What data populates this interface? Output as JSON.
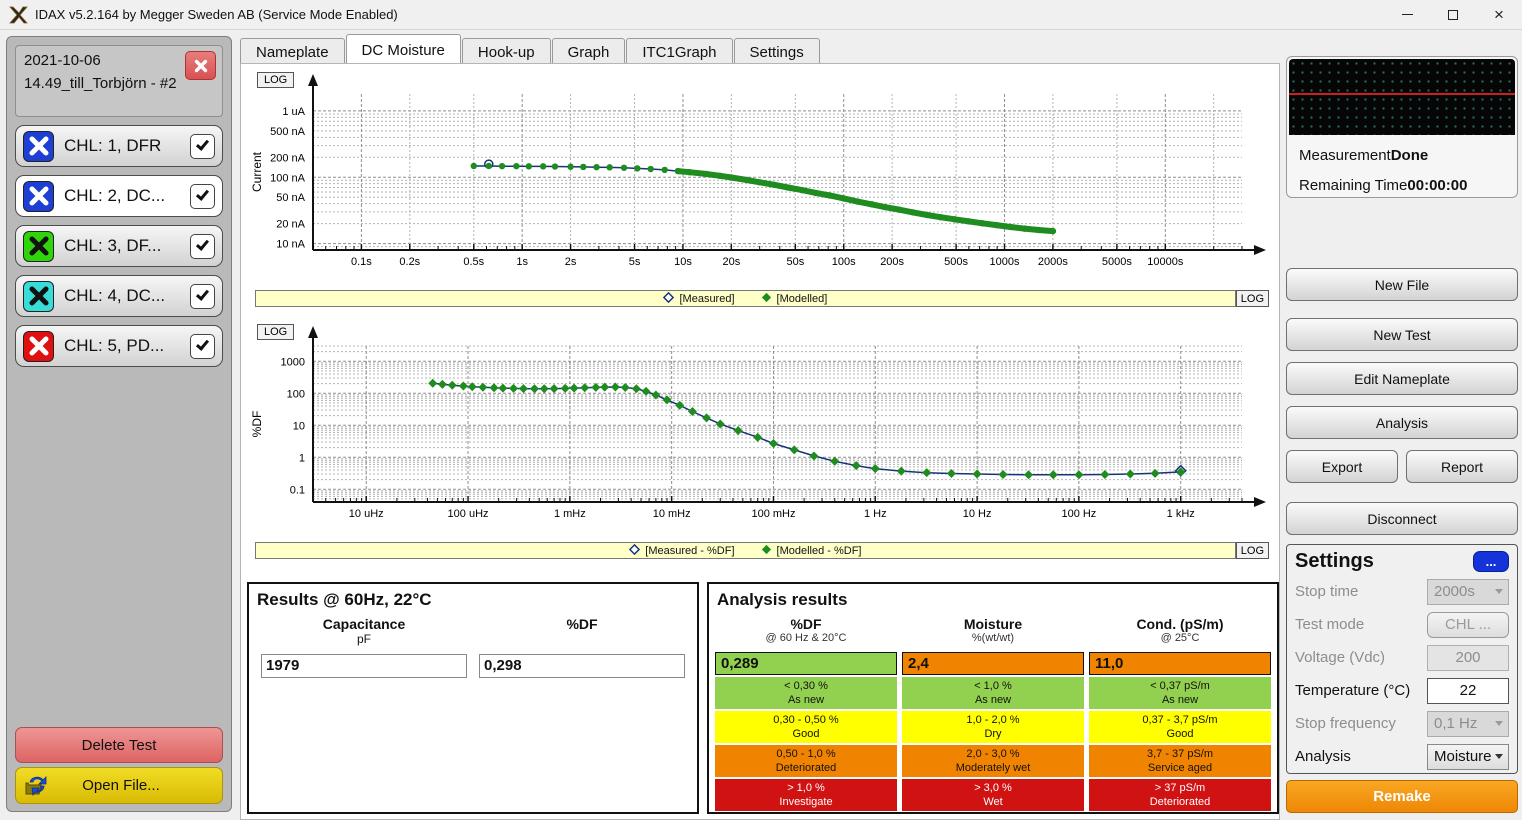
{
  "window": {
    "title": "IDAX v5.2.164 by Megger Sweden AB (Service Mode Enabled)"
  },
  "sidebar": {
    "test_date": "2021-10-06",
    "test_name": "14.49_till_Torbjörn - #2",
    "channels": [
      {
        "id": 1,
        "label": "CHL: 1, DFR",
        "icon_color": "#1e3fd4",
        "x_color": "#ffffff",
        "selected": false,
        "checked": true
      },
      {
        "id": 2,
        "label": "CHL: 2, DC...",
        "icon_color": "#1e3fd4",
        "x_color": "#ffffff",
        "selected": true,
        "checked": true
      },
      {
        "id": 3,
        "label": "CHL: 3, DF...",
        "icon_color": "#2fd40a",
        "x_color": "#111111",
        "selected": false,
        "checked": true
      },
      {
        "id": 4,
        "label": "CHL: 4, DC...",
        "icon_color": "#38dcd9",
        "x_color": "#111111",
        "selected": false,
        "checked": true
      },
      {
        "id": 5,
        "label": "CHL: 5, PD...",
        "icon_color": "#e01010",
        "x_color": "#ffffff",
        "selected": false,
        "checked": true
      }
    ],
    "delete_button": "Delete Test",
    "open_button": "Open File..."
  },
  "tabs": {
    "items": [
      "Nameplate",
      "DC Moisture",
      "Hook-up",
      "Graph",
      "ITC1Graph",
      "Settings"
    ],
    "active": "DC Moisture"
  },
  "results": {
    "title": "Results @ 60Hz, 22°C",
    "fields": [
      {
        "label": "Capacitance",
        "unit": "pF",
        "value": "1979"
      },
      {
        "label": "%DF",
        "unit": "",
        "value": "0,298"
      }
    ]
  },
  "analysis": {
    "title": "Analysis results",
    "palette": {
      "green": "#92d050",
      "yellow": "#ffff00",
      "orange": "#f08400",
      "red": "#d01212"
    },
    "columns": [
      {
        "header": "%DF",
        "subheader": "@ 60 Hz & 20°C",
        "value": "0,289",
        "value_color": "#92d050",
        "rows": [
          {
            "range": "< 0,30 %",
            "label": "As new",
            "color": "#92d050",
            "text": "#111111"
          },
          {
            "range": "0,30 - 0,50 %",
            "label": "Good",
            "color": "#ffff00",
            "text": "#111111"
          },
          {
            "range": "0,50 - 1,0 %",
            "label": "Deteriorated",
            "color": "#f08400",
            "text": "#111111"
          },
          {
            "range": "> 1,0 %",
            "label": "Investigate",
            "color": "#d01212",
            "text": "#ffffff"
          }
        ]
      },
      {
        "header": "Moisture",
        "subheader": "%(wt/wt)",
        "value": "2,4",
        "value_color": "#f08400",
        "rows": [
          {
            "range": "< 1,0 %",
            "label": "As new",
            "color": "#92d050",
            "text": "#111111"
          },
          {
            "range": "1,0 - 2,0 %",
            "label": "Dry",
            "color": "#ffff00",
            "text": "#111111"
          },
          {
            "range": "2,0 - 3,0 %",
            "label": "Moderately wet",
            "color": "#f08400",
            "text": "#111111"
          },
          {
            "range": "> 3,0 %",
            "label": "Wet",
            "color": "#d01212",
            "text": "#ffffff"
          }
        ]
      },
      {
        "header": "Cond. (pS/m)",
        "subheader": "@ 25°C",
        "value": "11,0",
        "value_color": "#f08400",
        "rows": [
          {
            "range": "< 0,37 pS/m",
            "label": "As new",
            "color": "#92d050",
            "text": "#111111"
          },
          {
            "range": "0,37 - 3,7 pS/m",
            "label": "Good",
            "color": "#ffff00",
            "text": "#111111"
          },
          {
            "range": "3,7 - 37 pS/m",
            "label": "Service aged",
            "color": "#f08400",
            "text": "#111111"
          },
          {
            "range": "> 37 pS/m",
            "label": "Deteriorated",
            "color": "#d01212",
            "text": "#ffffff"
          }
        ]
      }
    ]
  },
  "right_panel": {
    "measurement_label": "Measurement",
    "measurement_value": "Done",
    "remaining_label": "Remaining Time",
    "remaining_value": "00:00:00",
    "new_file": "New File",
    "new_test": "New Test",
    "edit_nameplate": "Edit Nameplate",
    "analysis_btn": "Analysis",
    "export": "Export",
    "report": "Report",
    "disconnect": "Disconnect",
    "remake": "Remake",
    "settings": {
      "title": "Settings",
      "more": "...",
      "rows": [
        {
          "label": "Stop time",
          "value": "2000s",
          "type": "select",
          "enabled": false
        },
        {
          "label": "Test mode",
          "value": "CHL ...",
          "type": "button",
          "enabled": false
        },
        {
          "label": "Voltage (Vdc)",
          "value": "200",
          "type": "input",
          "enabled": false
        },
        {
          "label": "Temperature (°C)",
          "value": "22",
          "type": "input",
          "enabled": true
        },
        {
          "label": "Stop frequency",
          "value": "0,1 Hz",
          "type": "select",
          "enabled": false
        },
        {
          "label": "Analysis",
          "value": "Moisture",
          "type": "select",
          "enabled": true
        }
      ]
    }
  },
  "chart_data": [
    {
      "type": "scatter",
      "name": "current-vs-time",
      "log_label": "LOG",
      "ylabel": "Current",
      "x_scale": "log",
      "y_scale": "log",
      "xlim": [
        0.05,
        30000
      ],
      "ylim": [
        8,
        1800
      ],
      "xticks": [
        [
          0.1,
          "0.1s"
        ],
        [
          0.2,
          "0.2s"
        ],
        [
          0.5,
          "0.5s"
        ],
        [
          1,
          "1s"
        ],
        [
          2,
          "2s"
        ],
        [
          5,
          "5s"
        ],
        [
          10,
          "10s"
        ],
        [
          20,
          "20s"
        ],
        [
          50,
          "50s"
        ],
        [
          100,
          "100s"
        ],
        [
          200,
          "200s"
        ],
        [
          500,
          "500s"
        ],
        [
          1000,
          "1000s"
        ],
        [
          2000,
          "2000s"
        ],
        [
          5000,
          "5000s"
        ],
        [
          10000,
          "10000s"
        ]
      ],
      "yticks": [
        [
          1000,
          "1 uA"
        ],
        [
          500,
          "500 nA"
        ],
        [
          200,
          "200 nA"
        ],
        [
          100,
          "100 nA"
        ],
        [
          50,
          "50 nA"
        ],
        [
          20,
          "20 nA"
        ],
        [
          10,
          "10 nA"
        ]
      ],
      "v_grid_multipliers": [
        1,
        2,
        5
      ],
      "points_unit": [
        "time s",
        "current nA"
      ],
      "points": [
        [
          0.5,
          148
        ],
        [
          0.62,
          148
        ],
        [
          0.75,
          147
        ],
        [
          0.92,
          147
        ],
        [
          1.1,
          146
        ],
        [
          1.35,
          146
        ],
        [
          1.6,
          145
        ],
        [
          2.0,
          144
        ],
        [
          2.4,
          143
        ],
        [
          2.9,
          142
        ],
        [
          3.5,
          141
        ],
        [
          4.3,
          139
        ],
        [
          5.2,
          136
        ],
        [
          6.3,
          133
        ],
        [
          7.7,
          129
        ],
        [
          9.3,
          124
        ],
        [
          11,
          119
        ],
        [
          14,
          112
        ],
        [
          17,
          105
        ],
        [
          20,
          99
        ],
        [
          25,
          91
        ],
        [
          30,
          84
        ],
        [
          37,
          77
        ],
        [
          45,
          70
        ],
        [
          55,
          64
        ],
        [
          67,
          58
        ],
        [
          82,
          53
        ],
        [
          100,
          48
        ],
        [
          122,
          43
        ],
        [
          150,
          39
        ],
        [
          180,
          35.5
        ],
        [
          220,
          32.5
        ],
        [
          270,
          29.5
        ],
        [
          330,
          27
        ],
        [
          400,
          25
        ],
        [
          490,
          23.2
        ],
        [
          600,
          21.6
        ],
        [
          730,
          20.2
        ],
        [
          890,
          19
        ],
        [
          1090,
          17.8
        ],
        [
          1330,
          16.8
        ],
        [
          1630,
          16
        ],
        [
          2000,
          15.4
        ]
      ],
      "series": [
        {
          "name": "[Measured]",
          "color": "#16337a",
          "render": "line",
          "marker": "open-circle",
          "marker_points": [
            [
              0.62,
              158
            ]
          ]
        },
        {
          "name": "[Modelled]",
          "color": "#1e8c1e",
          "render": "dots",
          "dot_size": 3.2,
          "thick_from_x": 9
        }
      ]
    },
    {
      "type": "scatter",
      "name": "df-vs-frequency",
      "log_label": "LOG",
      "ylabel": "%DF",
      "x_scale": "log",
      "y_scale": "log",
      "xlim": [
        3e-06,
        4000
      ],
      "ylim": [
        0.04,
        3000
      ],
      "xticks": [
        [
          1e-05,
          "10 uHz"
        ],
        [
          0.0001,
          "100 uHz"
        ],
        [
          0.001,
          "1 mHz"
        ],
        [
          0.01,
          "10 mHz"
        ],
        [
          0.1,
          "100 mHz"
        ],
        [
          1,
          "1 Hz"
        ],
        [
          10,
          "10 Hz"
        ],
        [
          100,
          "100 Hz"
        ],
        [
          1000,
          "1 kHz"
        ]
      ],
      "yticks": [
        [
          1000,
          "1000"
        ],
        [
          100,
          "100"
        ],
        [
          10,
          "10"
        ],
        [
          1,
          "1"
        ],
        [
          0.1,
          "0.1"
        ]
      ],
      "v_grid_multipliers": [
        1
      ],
      "points_unit": [
        "frequency Hz",
        "%DF"
      ],
      "points": [
        [
          4.5e-05,
          205
        ],
        [
          5.6e-05,
          190
        ],
        [
          7e-05,
          178
        ],
        [
          9e-05,
          168
        ],
        [
          0.00011,
          160
        ],
        [
          0.00014,
          154
        ],
        [
          0.00018,
          149
        ],
        [
          0.00022,
          145
        ],
        [
          0.00028,
          142
        ],
        [
          0.00035,
          140
        ],
        [
          0.00045,
          139
        ],
        [
          0.00056,
          139
        ],
        [
          0.0007,
          140
        ],
        [
          0.0009,
          142
        ],
        [
          0.0011,
          145
        ],
        [
          0.0014,
          149
        ],
        [
          0.0018,
          153
        ],
        [
          0.0022,
          156
        ],
        [
          0.0028,
          157
        ],
        [
          0.0035,
          152
        ],
        [
          0.0045,
          138
        ],
        [
          0.0056,
          115
        ],
        [
          0.007,
          88
        ],
        [
          0.009,
          62
        ],
        [
          0.012,
          42
        ],
        [
          0.016,
          27
        ],
        [
          0.022,
          17
        ],
        [
          0.03,
          11
        ],
        [
          0.045,
          6.8
        ],
        [
          0.07,
          4.2
        ],
        [
          0.1,
          2.7
        ],
        [
          0.16,
          1.7
        ],
        [
          0.25,
          1.1
        ],
        [
          0.4,
          0.75
        ],
        [
          0.65,
          0.55
        ],
        [
          1,
          0.44
        ],
        [
          1.8,
          0.37
        ],
        [
          3.2,
          0.33
        ],
        [
          5.6,
          0.31
        ],
        [
          10,
          0.3
        ],
        [
          18,
          0.29
        ],
        [
          32,
          0.285
        ],
        [
          56,
          0.283
        ],
        [
          100,
          0.285
        ],
        [
          180,
          0.29
        ],
        [
          320,
          0.3
        ],
        [
          560,
          0.315
        ],
        [
          1000,
          0.35
        ]
      ],
      "series": [
        {
          "name": "[Measured - %DF]",
          "color": "#16337a",
          "render": "line",
          "marker": "open-diamond",
          "marker_points": [
            [
              1000,
              0.38
            ]
          ]
        },
        {
          "name": "[Modelled - %DF]",
          "color": "#1e8c1e",
          "render": "diamonds",
          "dot_size": 4.5
        }
      ]
    }
  ]
}
